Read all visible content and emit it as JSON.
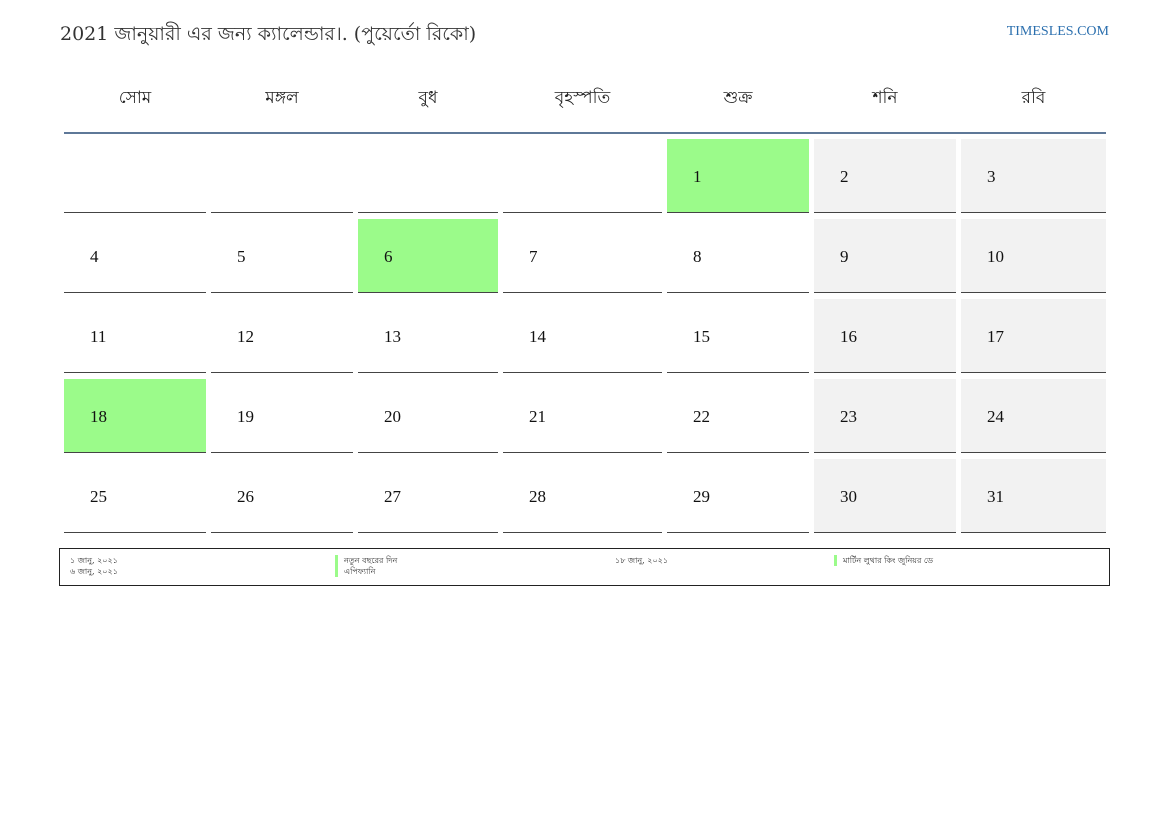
{
  "page": {
    "title": "2021 জানুয়ারী এর জন্য ক্যালেন্ডার।. (পুয়ের্তো রিকো)",
    "site": "TIMESLES.COM"
  },
  "colors": {
    "holiday": "#9bfb8a",
    "weekend": "#f2f2f2",
    "header_rule": "#5e7898",
    "link": "#2b6fae"
  },
  "weekdays": [
    "সোম",
    "মঙ্গল",
    "বুধ",
    "বৃহস্পতি",
    "শুক্র",
    "শনি",
    "রবি"
  ],
  "weeks": [
    [
      "",
      "",
      "",
      "",
      "1",
      "2",
      "3"
    ],
    [
      "4",
      "5",
      "6",
      "7",
      "8",
      "9",
      "10"
    ],
    [
      "11",
      "12",
      "13",
      "14",
      "15",
      "16",
      "17"
    ],
    [
      "18",
      "19",
      "20",
      "21",
      "22",
      "23",
      "24"
    ],
    [
      "25",
      "26",
      "27",
      "28",
      "29",
      "30",
      "31"
    ]
  ],
  "holiday_days": [
    "1",
    "6",
    "18"
  ],
  "legend": [
    {
      "date": "১ জানু, ২০২১",
      "name": "নতুন বছরের দিন"
    },
    {
      "date": "৬ জানু, ২০২১",
      "name": "এপিফ্যানি"
    },
    {
      "date": "১৮ জানু, ২০২১",
      "name": "মার্টিন লুথার কিং জুনিয়র ডে"
    }
  ]
}
